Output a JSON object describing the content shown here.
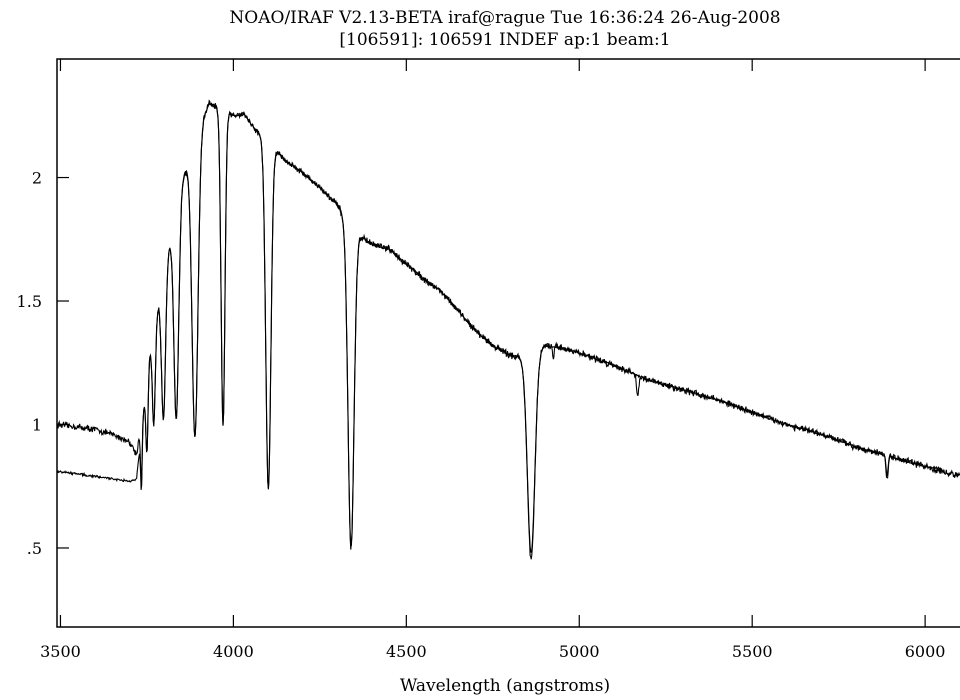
{
  "chart_data": {
    "type": "line",
    "title": "NOAO/IRAF V2.13-BETA iraf@rague Tue 16:36:24 26-Aug-2008",
    "subtitle": "[106591]: 106591 INDEF ap:1 beam:1",
    "xlabel": "Wavelength (angstroms)",
    "ylabel": "",
    "xlim": [
      3490,
      6150
    ],
    "ylim": [
      0.18,
      2.48
    ],
    "grid": false,
    "x_ticks": [
      {
        "value": 3500,
        "label": "3500"
      },
      {
        "value": 4000,
        "label": "4000"
      },
      {
        "value": 4500,
        "label": "4500"
      },
      {
        "value": 5000,
        "label": "5000"
      },
      {
        "value": 5500,
        "label": "5500"
      },
      {
        "value": 6000,
        "label": "6000"
      }
    ],
    "y_ticks": [
      {
        "value": 0.5,
        "label": ".5"
      },
      {
        "value": 1.0,
        "label": "1"
      },
      {
        "value": 1.5,
        "label": "1.5"
      },
      {
        "value": 2.0,
        "label": "2"
      }
    ],
    "series": [
      {
        "continuum": [
          [
            3490,
            1.0
          ],
          [
            3550,
            0.99
          ],
          [
            3600,
            0.98
          ],
          [
            3650,
            0.96
          ],
          [
            3700,
            0.93
          ],
          [
            3720,
            0.88
          ],
          [
            3740,
            1.05
          ],
          [
            3760,
            1.3
          ],
          [
            3800,
            1.62
          ],
          [
            3850,
            1.98
          ],
          [
            3900,
            2.2
          ],
          [
            3930,
            2.3
          ],
          [
            3960,
            2.28
          ],
          [
            4000,
            2.25
          ],
          [
            4030,
            2.26
          ],
          [
            4060,
            2.2
          ],
          [
            4100,
            2.14
          ],
          [
            4150,
            2.07
          ],
          [
            4200,
            2.02
          ],
          [
            4250,
            1.96
          ],
          [
            4300,
            1.89
          ],
          [
            4350,
            1.78
          ],
          [
            4400,
            1.73
          ],
          [
            4450,
            1.71
          ],
          [
            4500,
            1.65
          ],
          [
            4550,
            1.59
          ],
          [
            4600,
            1.54
          ],
          [
            4650,
            1.46
          ],
          [
            4700,
            1.38
          ],
          [
            4750,
            1.32
          ],
          [
            4800,
            1.28
          ],
          [
            4850,
            1.27
          ],
          [
            4900,
            1.32
          ],
          [
            4950,
            1.31
          ],
          [
            5000,
            1.29
          ],
          [
            5100,
            1.24
          ],
          [
            5200,
            1.18
          ],
          [
            5300,
            1.14
          ],
          [
            5400,
            1.1
          ],
          [
            5500,
            1.05
          ],
          [
            5600,
            1.0
          ],
          [
            5700,
            0.96
          ],
          [
            5800,
            0.91
          ],
          [
            5900,
            0.87
          ],
          [
            6000,
            0.83
          ],
          [
            6050,
            0.81
          ],
          [
            6100,
            0.79
          ],
          [
            6150,
            0.77
          ]
        ],
        "lines": [
          [
            3734,
            0.06,
            0.24
          ],
          [
            3750,
            0.08,
            0.29
          ],
          [
            3770,
            0.11,
            0.38
          ],
          [
            3798,
            0.15,
            0.58
          ],
          [
            3835,
            0.18,
            0.85
          ],
          [
            3889,
            0.22,
            1.2
          ],
          [
            3970,
            0.14,
            1.28
          ],
          [
            4101,
            0.18,
            1.4
          ],
          [
            4340,
            0.2,
            1.3
          ],
          [
            4861,
            0.22,
            0.83
          ],
          [
            4925,
            0.04,
            0.06
          ],
          [
            5169,
            0.06,
            0.08
          ],
          [
            5890,
            0.05,
            0.1
          ]
        ],
        "noise": 0.02
      },
      {
        "continuum": [
          [
            3490,
            0.81
          ],
          [
            3550,
            0.8
          ],
          [
            3600,
            0.79
          ],
          [
            3650,
            0.78
          ],
          [
            3700,
            0.77
          ],
          [
            3720,
            0.78
          ],
          [
            3740,
            1.05
          ],
          [
            3760,
            1.3
          ],
          [
            3800,
            1.62
          ],
          [
            3850,
            1.98
          ],
          [
            3900,
            2.2
          ],
          [
            3930,
            2.3
          ],
          [
            3960,
            2.28
          ],
          [
            4000,
            2.25
          ],
          [
            4030,
            2.26
          ],
          [
            4060,
            2.2
          ],
          [
            4100,
            2.14
          ],
          [
            4150,
            2.07
          ],
          [
            4200,
            2.02
          ],
          [
            4250,
            1.96
          ],
          [
            4300,
            1.89
          ],
          [
            4350,
            1.78
          ],
          [
            4400,
            1.73
          ],
          [
            4450,
            1.71
          ],
          [
            4500,
            1.65
          ],
          [
            4550,
            1.59
          ],
          [
            4600,
            1.54
          ],
          [
            4650,
            1.46
          ],
          [
            4700,
            1.38
          ],
          [
            4750,
            1.32
          ],
          [
            4800,
            1.28
          ],
          [
            4850,
            1.27
          ],
          [
            4900,
            1.32
          ],
          [
            4950,
            1.31
          ],
          [
            5000,
            1.29
          ],
          [
            5100,
            1.24
          ],
          [
            5200,
            1.18
          ],
          [
            5300,
            1.14
          ],
          [
            5400,
            1.1
          ],
          [
            5500,
            1.05
          ],
          [
            5600,
            1.0
          ],
          [
            5700,
            0.96
          ],
          [
            5800,
            0.91
          ],
          [
            5900,
            0.87
          ],
          [
            6000,
            0.83
          ],
          [
            6050,
            0.82
          ]
        ],
        "lines": [
          [
            3734,
            0.06,
            0.24
          ],
          [
            3750,
            0.08,
            0.29
          ],
          [
            3770,
            0.11,
            0.38
          ],
          [
            3798,
            0.15,
            0.58
          ],
          [
            3835,
            0.18,
            0.85
          ],
          [
            3889,
            0.22,
            1.2
          ],
          [
            3970,
            0.14,
            1.28
          ],
          [
            4101,
            0.18,
            1.4
          ],
          [
            4340,
            0.2,
            1.3
          ],
          [
            4861,
            0.22,
            0.8
          ],
          [
            5890,
            0.05,
            0.08
          ]
        ],
        "noise": 0.007
      }
    ]
  }
}
